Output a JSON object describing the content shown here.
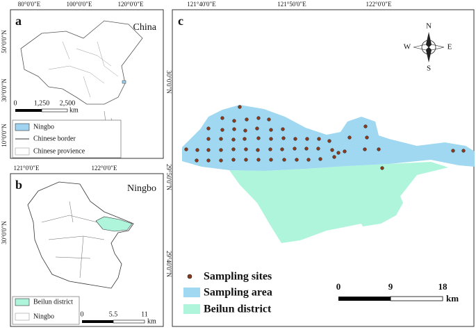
{
  "panel_a": {
    "letter": "a",
    "title": "China",
    "top_labels": [
      "80°0'0\"E",
      "100°0'0\"E",
      "120°0'0\"E"
    ],
    "side_labels": [
      "50°0'0\"N",
      "30°0'0\"N",
      "10°0'0\"N"
    ],
    "scale_labels": [
      "0",
      "1,250",
      "2,500"
    ],
    "scale_unit": "km",
    "legend": [
      "Ningbo",
      "Chinese border",
      "Chinese provience"
    ]
  },
  "panel_b": {
    "letter": "b",
    "title": "Ningbo",
    "top_labels": [
      "121°0'0\"E",
      "122°0'0\"E"
    ],
    "side_labels": [
      "30°0'0\"N"
    ],
    "scale_labels": [
      "0",
      "5.5",
      "11"
    ],
    "scale_unit": "km",
    "legend": [
      "Beilun district",
      "Ningbo"
    ]
  },
  "panel_c": {
    "letter": "c",
    "top_labels": [
      "121°40'0\"E",
      "121°50'0\"E",
      "122°0'0\"E"
    ],
    "side_labels": [
      "30°0'0\"N",
      "29°50'0\"N",
      "29°40'0\"N"
    ],
    "compass": {
      "north": "N",
      "east": "E",
      "south": "S",
      "west": "W"
    },
    "legend": [
      "Sampling sites",
      "Sampling area",
      "Beilun district"
    ],
    "scale_labels": [
      "0",
      "9",
      "18"
    ],
    "scale_unit": "km"
  }
}
